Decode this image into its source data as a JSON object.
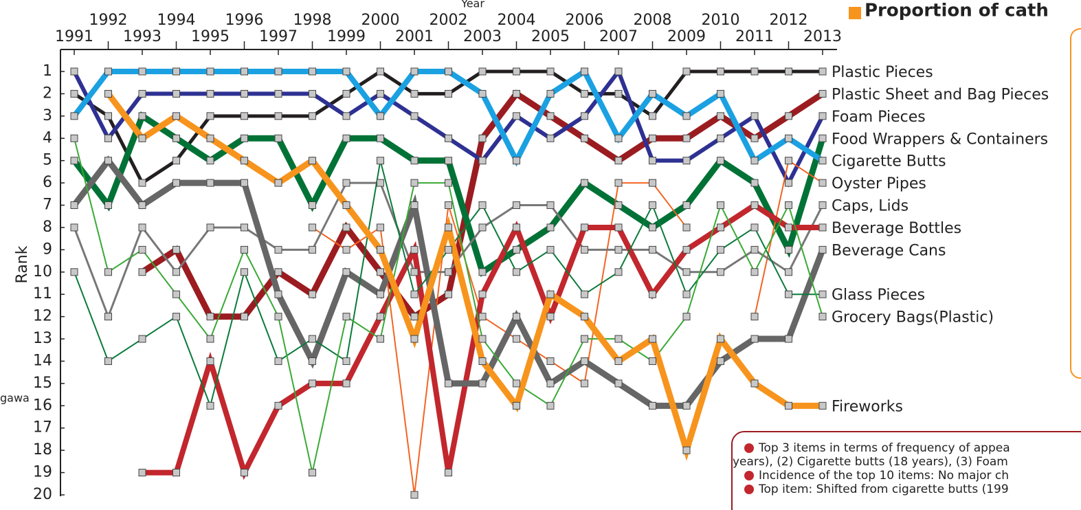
{
  "chart_data": {
    "type": "bump",
    "x_label": "Year",
    "y_label": "Rank",
    "categories": [
      "1991",
      "1992",
      "1993",
      "1994",
      "1995",
      "1996",
      "1997",
      "1998",
      "1999",
      "2000",
      "2001",
      "2002",
      "2003",
      "2004",
      "2005",
      "2006",
      "2007",
      "2008",
      "2009",
      "2010",
      "2011",
      "2012",
      "2013"
    ],
    "ylim": [
      1,
      20
    ],
    "y_inverted": true,
    "yticks": [
      1,
      2,
      3,
      4,
      5,
      6,
      7,
      8,
      9,
      10,
      11,
      12,
      13,
      14,
      15,
      16,
      17,
      18,
      19,
      20
    ],
    "series": [
      {
        "name": "Plastic Pieces",
        "color": "#231f20",
        "line_width": 5,
        "values": [
          2,
          3,
          6,
          5,
          3,
          3,
          3,
          3,
          2,
          1,
          2,
          2,
          1,
          1,
          1,
          2,
          2,
          3,
          1,
          1,
          1,
          1,
          1
        ]
      },
      {
        "name": "Plastic Sheet and Bag Pieces",
        "color": "#9b1c20",
        "line_width": 9,
        "values": [
          null,
          null,
          10,
          9,
          12,
          12,
          10,
          11,
          8,
          10,
          12,
          11,
          4,
          2,
          3,
          4,
          5,
          4,
          4,
          3,
          4,
          3,
          2
        ]
      },
      {
        "name": "Foam Pieces",
        "color": "#2e3192",
        "line_width": 6,
        "values": [
          1,
          4,
          2,
          2,
          2,
          2,
          2,
          2,
          3,
          2,
          3,
          4,
          5,
          3,
          4,
          3,
          1,
          5,
          5,
          4,
          3,
          6,
          3
        ]
      },
      {
        "name": "Food Wrappers & Containers",
        "color": "#007236",
        "line_width": 9,
        "values": [
          5,
          7,
          3,
          4,
          5,
          4,
          4,
          7,
          4,
          4,
          5,
          5,
          10,
          9,
          8,
          6,
          7,
          8,
          7,
          5,
          6,
          9,
          4
        ]
      },
      {
        "name": "Cigarette Butts",
        "color": "#1ba1e2",
        "line_width": 8,
        "values": [
          3,
          1,
          1,
          1,
          1,
          1,
          1,
          1,
          1,
          3,
          1,
          1,
          2,
          5,
          2,
          1,
          4,
          2,
          3,
          2,
          5,
          4,
          5
        ]
      },
      {
        "name": "Oyster Pipes",
        "color": "#f26522",
        "line_width": 2,
        "values": [
          null,
          null,
          null,
          null,
          null,
          null,
          null,
          8,
          9,
          8,
          20,
          7,
          12,
          13,
          14,
          15,
          6,
          6,
          8,
          null,
          12,
          5,
          6
        ]
      },
      {
        "name": "Caps, Lids",
        "color": "#777777",
        "line_width": 3,
        "values": [
          8,
          12,
          8,
          10,
          8,
          8,
          9,
          9,
          6,
          6,
          10,
          10,
          8,
          7,
          7,
          9,
          9,
          9,
          10,
          10,
          9,
          10,
          7
        ]
      },
      {
        "name": "Beverage Bottles",
        "color": "#c1272d",
        "line_width": 8,
        "values": [
          null,
          null,
          19,
          19,
          14,
          19,
          16,
          15,
          15,
          12,
          9,
          19,
          11,
          8,
          12,
          8,
          8,
          11,
          9,
          8,
          7,
          8,
          8
        ]
      },
      {
        "name": "Beverage Cans",
        "color": "#666666",
        "line_width": 9,
        "values": [
          7,
          5,
          7,
          6,
          6,
          6,
          11,
          14,
          10,
          11,
          7,
          15,
          15,
          12,
          15,
          14,
          15,
          16,
          16,
          14,
          13,
          13,
          9
        ]
      },
      {
        "name": "Glass Pieces",
        "color": "#0b7a3b",
        "line_width": 2,
        "values": [
          10,
          14,
          13,
          12,
          16,
          10,
          14,
          13,
          14,
          5,
          11,
          9,
          7,
          10,
          9,
          11,
          10,
          7,
          11,
          9,
          8,
          11,
          11
        ]
      },
      {
        "name": "Grocery Bags(Plastic)",
        "color": "#39a935",
        "line_width": 2,
        "values": [
          4,
          10,
          9,
          11,
          13,
          9,
          12,
          19,
          12,
          13,
          6,
          6,
          13,
          15,
          16,
          13,
          13,
          14,
          12,
          7,
          10,
          7,
          12
        ]
      },
      {
        "name": "Fireworks",
        "color": "#f7941d",
        "line_width": 9,
        "values": [
          null,
          2,
          4,
          3,
          4,
          5,
          6,
          5,
          7,
          9,
          13,
          8,
          14,
          16,
          11,
          12,
          14,
          13,
          18,
          13,
          15,
          16,
          16
        ]
      }
    ],
    "legend_title": "Proportion of cath",
    "side_label": "gawa",
    "notes": [
      "Top 3 items in terms of frequency of appea",
      "years), (2) Cigarette butts (18 years), (3) Foam",
      "Incidence of the top 10 items:  No major ch",
      "Top item:  Shifted from cigarette butts (199"
    ]
  }
}
